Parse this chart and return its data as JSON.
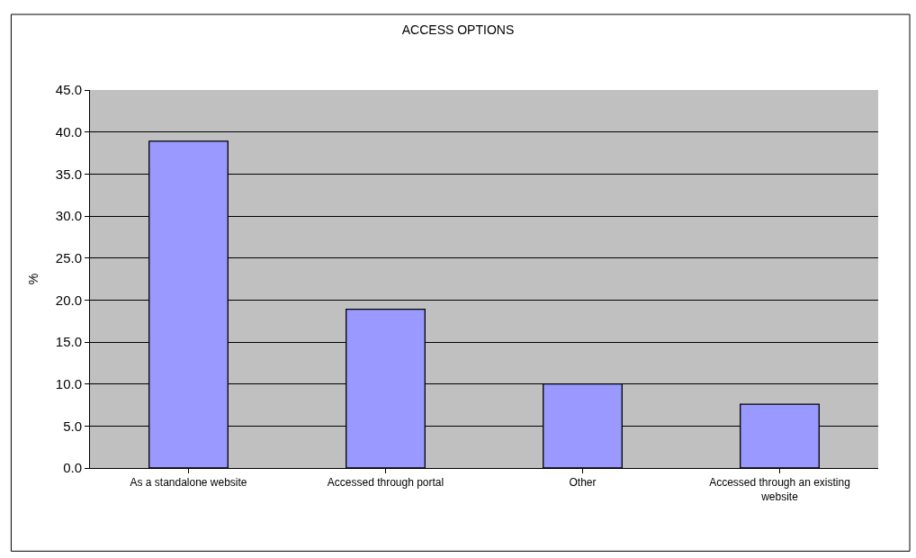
{
  "chart_data": {
    "type": "bar",
    "title": "ACCESS OPTIONS",
    "ylabel": "%",
    "categories": [
      "As a standalone website",
      "Accessed through portal",
      "Other",
      "Accessed through an existing website"
    ],
    "values": [
      38.9,
      18.9,
      10.0,
      7.6
    ],
    "color": "#9999ff",
    "ylim": [
      0,
      45
    ],
    "yticks": [
      {
        "value": 0,
        "label": "0.0"
      },
      {
        "value": 5,
        "label": "5.0"
      },
      {
        "value": 10,
        "label": "10.0"
      },
      {
        "value": 15,
        "label": "15.0"
      },
      {
        "value": 20,
        "label": "20.0"
      },
      {
        "value": 25,
        "label": "25.0"
      },
      {
        "value": 30,
        "label": "30.0"
      },
      {
        "value": 35,
        "label": "35.0"
      },
      {
        "value": 40,
        "label": "40.0"
      },
      {
        "value": 45,
        "label": "45.0"
      }
    ],
    "grid": "y"
  }
}
